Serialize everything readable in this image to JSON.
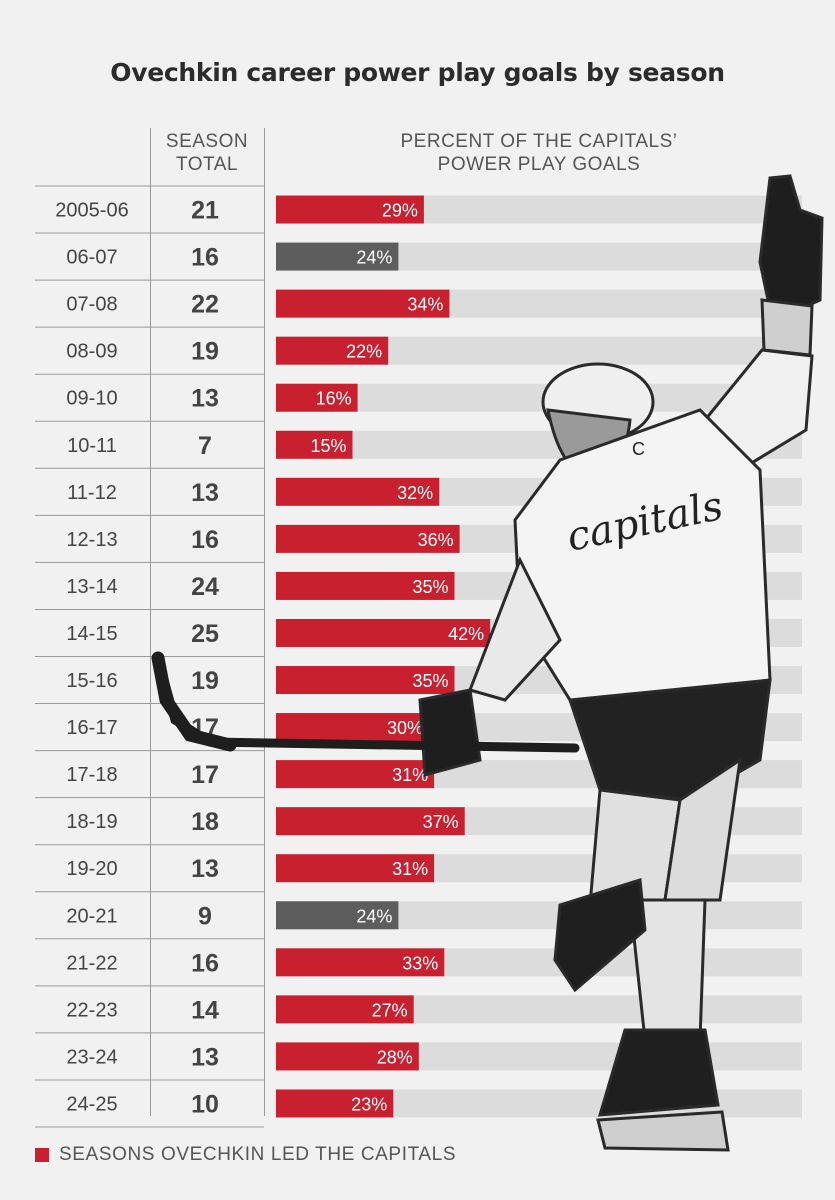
{
  "title": "Ovechkin career power play goals by season",
  "headers": {
    "season_total": [
      "SEASON",
      "TOTAL"
    ],
    "percent": [
      "PERCENT OF THE CAPITALS’",
      "POWER PLAY GOALS"
    ]
  },
  "legend": {
    "label": "SEASONS OVECHKIN LED THE CAPITALS",
    "color": "#c8202f"
  },
  "colors": {
    "led": "#c8202f",
    "not_led": "#5d5d5d",
    "track": "#dcdcdc"
  },
  "chart_data": {
    "type": "bar",
    "orientation": "horizontal",
    "categories": [
      "2005-06",
      "06-07",
      "07-08",
      "08-09",
      "09-10",
      "10-11",
      "11-12",
      "12-13",
      "13-14",
      "14-15",
      "15-16",
      "16-17",
      "17-18",
      "18-19",
      "19-20",
      "20-21",
      "21-22",
      "22-23",
      "23-24",
      "24-25"
    ],
    "season_totals": [
      21,
      16,
      22,
      19,
      13,
      7,
      13,
      16,
      24,
      25,
      19,
      17,
      17,
      18,
      13,
      9,
      16,
      14,
      13,
      10
    ],
    "values": [
      29,
      24,
      34,
      22,
      16,
      15,
      32,
      36,
      35,
      42,
      35,
      30,
      31,
      37,
      31,
      24,
      33,
      27,
      28,
      23
    ],
    "value_labels": [
      "29%",
      "24%",
      "34%",
      "22%",
      "16%",
      "15%",
      "32%",
      "36%",
      "35%",
      "42%",
      "35%",
      "30%",
      "31%",
      "37%",
      "31%",
      "24%",
      "33%",
      "27%",
      "28%",
      "23%"
    ],
    "led_capitals": [
      true,
      false,
      true,
      true,
      true,
      true,
      true,
      true,
      true,
      true,
      true,
      true,
      true,
      true,
      true,
      false,
      true,
      true,
      true,
      true
    ],
    "xlim": [
      0,
      100
    ],
    "grid": false,
    "legend_position": "bottom-left"
  }
}
